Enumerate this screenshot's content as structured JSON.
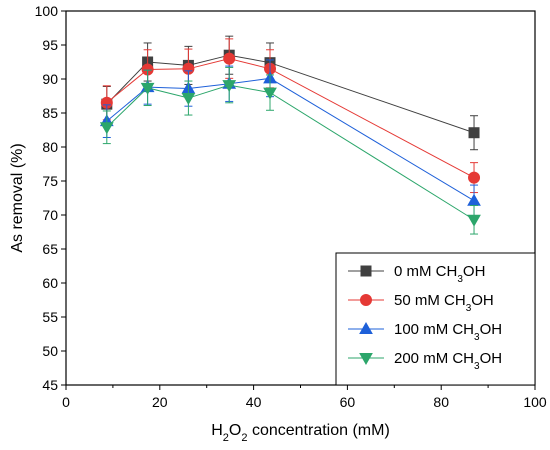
{
  "chart_data": {
    "type": "line",
    "title": "",
    "xlabel": {
      "pre": "H",
      "sub1": "2",
      "mid": "O",
      "sub2": "2",
      "post": " concentration (mM)"
    },
    "ylabel": "As removal (%)",
    "xlim": [
      0,
      100
    ],
    "ylim": [
      45,
      100
    ],
    "xticks": [
      0,
      20,
      40,
      60,
      80,
      100
    ],
    "yticks": [
      45,
      50,
      55,
      60,
      65,
      70,
      75,
      80,
      85,
      90,
      95,
      100
    ],
    "grid": false,
    "legend_position": "bottom-right",
    "x": [
      8.7,
      17.4,
      26.1,
      34.8,
      43.5,
      87.0
    ],
    "series": [
      {
        "name": {
          "pre": "0 mM CH",
          "sub": "3",
          "post": "OH"
        },
        "marker": "square",
        "color": "#404040",
        "values": [
          86.3,
          92.5,
          92.0,
          93.5,
          92.4,
          82.1
        ],
        "errors": [
          2.6,
          2.8,
          2.8,
          2.8,
          2.9,
          2.5
        ]
      },
      {
        "name": {
          "pre": "50 mM CH",
          "sub": "3",
          "post": "OH"
        },
        "marker": "circle",
        "color": "#e53935",
        "values": [
          86.5,
          91.4,
          91.5,
          93.0,
          91.5,
          75.5
        ],
        "errors": [
          2.5,
          2.9,
          2.9,
          2.9,
          2.8,
          2.2
        ]
      },
      {
        "name": {
          "pre": "100 mM CH",
          "sub": "3",
          "post": "OH"
        },
        "marker": "triangle-up",
        "color": "#1e60d9",
        "values": [
          83.8,
          88.8,
          88.6,
          89.3,
          90.1,
          72.1
        ],
        "errors": [
          2.4,
          2.5,
          2.6,
          2.6,
          2.7,
          2.3
        ]
      },
      {
        "name": {
          "pre": "200 mM CH",
          "sub": "3",
          "post": "OH"
        },
        "marker": "triangle-down",
        "color": "#2ca66b",
        "values": [
          82.9,
          88.7,
          87.2,
          89.1,
          88.0,
          69.3
        ],
        "errors": [
          2.4,
          2.6,
          2.5,
          2.6,
          2.6,
          2.1
        ]
      }
    ]
  }
}
